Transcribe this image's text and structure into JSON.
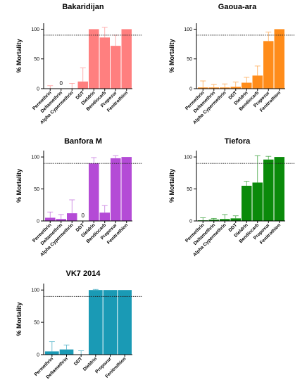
{
  "chart_data": [
    {
      "type": "bar",
      "title": "Bakaridijan",
      "ylabel": "% Mortality",
      "ylim": [
        0,
        110
      ],
      "yticks": [
        0,
        50,
        100
      ],
      "threshold": 90,
      "color": "#ff7f7f",
      "categories": [
        "Permethrin",
        "Deltamethrin",
        "Alpha Cypermethrin",
        "DDT",
        "Dieldrin",
        "Bendiocarb",
        "Propoxur",
        "Fenitrothion"
      ],
      "values": [
        0,
        0,
        0,
        12,
        100,
        86,
        72,
        100
      ],
      "error_upper": [
        5,
        0,
        9,
        35,
        100,
        103,
        90,
        100
      ],
      "value_labels": [
        "",
        "0",
        "",
        "",
        "",
        "",
        "",
        ""
      ]
    },
    {
      "type": "bar",
      "title": "Gaoua-ara",
      "ylabel": "% Mortality",
      "ylim": [
        0,
        110
      ],
      "yticks": [
        0,
        50,
        100
      ],
      "threshold": 90,
      "color": "#ff8c1a",
      "categories": [
        "Permethrin",
        "Deltamethrin",
        "Alpha Cypermethrin",
        "DDT",
        "Dieldrin",
        "Bendiocarb",
        "Propoxur",
        "Fenitrothion"
      ],
      "values": [
        2,
        2,
        2,
        3,
        10,
        22,
        80,
        100
      ],
      "error_upper": [
        13,
        7,
        8,
        11,
        19,
        38,
        95,
        100
      ],
      "value_labels": [
        "",
        "",
        "",
        "",
        "",
        "",
        "",
        ""
      ]
    },
    {
      "type": "bar",
      "title": "Banfora M",
      "ylabel": "% Mortality",
      "ylim": [
        0,
        110
      ],
      "yticks": [
        0,
        50,
        100
      ],
      "threshold": 90,
      "color": "#b44bd6",
      "categories": [
        "Permethrin",
        "Deltamethrin",
        "Alpha Cypermethrin",
        "DDT",
        "Dieldrin",
        "Bendiocarb",
        "Propoxur",
        "Fenitrothion"
      ],
      "values": [
        5,
        3,
        12,
        0,
        90,
        13,
        98,
        100
      ],
      "error_upper": [
        14,
        10,
        33,
        0,
        99,
        24,
        102,
        100
      ],
      "value_labels": [
        "",
        "",
        "",
        "0",
        "",
        "",
        "",
        ""
      ]
    },
    {
      "type": "bar",
      "title": "Tiefora",
      "ylabel": "% Mortality",
      "ylim": [
        0,
        110
      ],
      "yticks": [
        0,
        50,
        100
      ],
      "threshold": 90,
      "color": "#0a8a0a",
      "categories": [
        "Permethrin",
        "Deltamethrin",
        "Alpha Cypermethrin",
        "DDT",
        "Dieldrin",
        "Bendiocarb",
        "Propoxur",
        "Fenitrothion"
      ],
      "values": [
        1,
        2,
        3,
        4,
        55,
        60,
        96,
        100
      ],
      "error_upper": [
        5,
        4,
        10,
        8,
        62,
        102,
        101,
        100
      ],
      "value_labels": [
        "",
        "",
        "",
        "",
        "",
        "",
        "",
        ""
      ]
    },
    {
      "type": "bar",
      "title": "VK7 2014",
      "ylabel": "% Mortality",
      "ylim": [
        0,
        110
      ],
      "yticks": [
        0,
        50,
        100
      ],
      "threshold": 90,
      "color": "#1a9ab5",
      "categories": [
        "Permethrin",
        "Deltamethrin",
        "DDT",
        "Dieldrin",
        "Propoxur",
        "Fenitrothion"
      ],
      "values": [
        5,
        8,
        0,
        100,
        100,
        100
      ],
      "error_upper": [
        20,
        15,
        6,
        101,
        100,
        100
      ],
      "value_labels": [
        "",
        "",
        "",
        "",
        "",
        ""
      ]
    }
  ]
}
